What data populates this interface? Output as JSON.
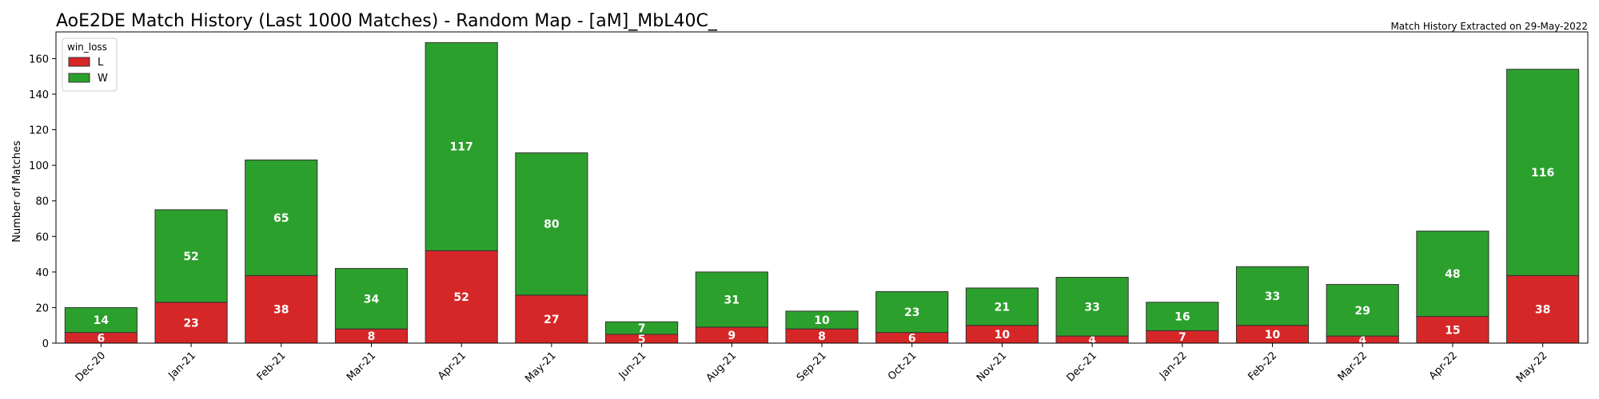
{
  "title": "AoE2DE Match History (Last 1000 Matches) - Random Map - [aM]_MbL40C_",
  "subtitle": "Match History Extracted on 29-May-2022",
  "chart_data": {
    "type": "bar",
    "stacked": true,
    "title": "AoE2DE Match History (Last 1000 Matches) - Random Map - [aM]_MbL40C_",
    "xlabel": "",
    "ylabel": "Number of Matches",
    "categories": [
      "Dec-20",
      "Jan-21",
      "Feb-21",
      "Mar-21",
      "Apr-21",
      "May-21",
      "Jun-21",
      "Aug-21",
      "Sep-21",
      "Oct-21",
      "Nov-21",
      "Dec-21",
      "Jan-22",
      "Feb-22",
      "Mar-22",
      "Apr-22",
      "May-22"
    ],
    "series": [
      {
        "name": "L",
        "color": "#d62728",
        "values": [
          6,
          23,
          38,
          8,
          52,
          27,
          5,
          9,
          8,
          6,
          10,
          4,
          7,
          10,
          4,
          15,
          38
        ]
      },
      {
        "name": "W",
        "color": "#2ca02c",
        "values": [
          14,
          52,
          65,
          34,
          117,
          80,
          7,
          31,
          10,
          23,
          21,
          33,
          16,
          33,
          29,
          48,
          116
        ]
      }
    ],
    "ylim": [
      0,
      175
    ],
    "yticks": [
      0,
      20,
      40,
      60,
      80,
      100,
      120,
      140,
      160
    ],
    "grid": false,
    "legend": {
      "title": "win_loss",
      "placement": "top-left"
    }
  }
}
